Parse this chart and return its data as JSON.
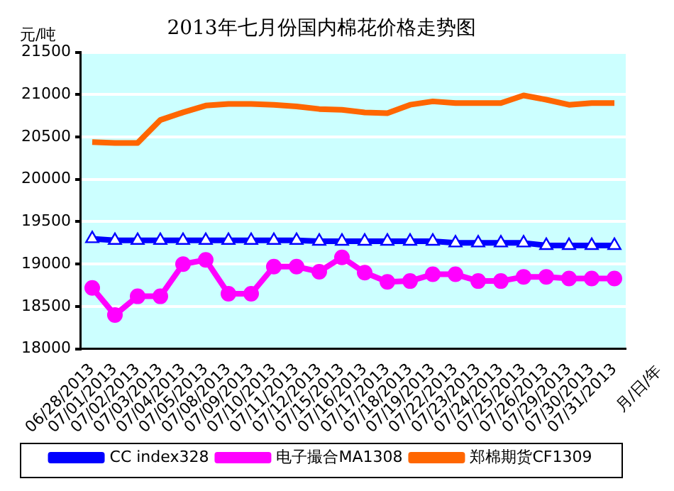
{
  "chart_data": {
    "type": "line",
    "title": "2013年七月份国内棉花价格走势图",
    "ylabel": "元/吨",
    "xlabel": "月/日/年",
    "categories": [
      "06/28/2013",
      "07/01/2013",
      "07/02/2013",
      "07/03/2013",
      "07/04/2013",
      "07/05/2013",
      "07/08/2013",
      "07/09/2013",
      "07/10/2013",
      "07/11/2013",
      "07/12/2013",
      "07/15/2013",
      "07/16/2013",
      "07/17/2013",
      "07/18/2013",
      "07/19/2013",
      "07/22/2013",
      "07/23/2013",
      "07/24/2013",
      "07/25/2013",
      "07/26/2013",
      "07/29/2013",
      "07/30/2013",
      "07/31/2013"
    ],
    "series": [
      {
        "name": "CC index328",
        "color": "#0000ff",
        "marker": "triangle",
        "values": [
          19300,
          19280,
          19280,
          19280,
          19280,
          19280,
          19280,
          19280,
          19280,
          19280,
          19270,
          19270,
          19270,
          19270,
          19270,
          19270,
          19250,
          19250,
          19250,
          19250,
          19220,
          19220,
          19220,
          19220
        ]
      },
      {
        "name": "电子撮合MA1308",
        "color": "#ff00ff",
        "marker": "circle",
        "values": [
          18720,
          18400,
          18620,
          18620,
          19000,
          19050,
          18650,
          18650,
          18970,
          18970,
          18910,
          19080,
          18900,
          18790,
          18800,
          18880,
          18880,
          18800,
          18800,
          18850,
          18850,
          18830,
          18830,
          18830
        ]
      },
      {
        "name": "郑棉期货CF1309",
        "color": "#ff6600",
        "marker": "none",
        "values": [
          20440,
          20430,
          20430,
          20700,
          20790,
          20870,
          20890,
          20890,
          20880,
          20860,
          20830,
          20820,
          20790,
          20780,
          20880,
          20920,
          20900,
          20900,
          20900,
          20990,
          20940,
          20880,
          20900,
          20900
        ]
      }
    ],
    "ylim": [
      18000,
      21500
    ],
    "yticks": [
      18000,
      18500,
      19000,
      19500,
      20000,
      20500,
      21000,
      21500
    ],
    "grid": "y",
    "legend": "bottom"
  }
}
